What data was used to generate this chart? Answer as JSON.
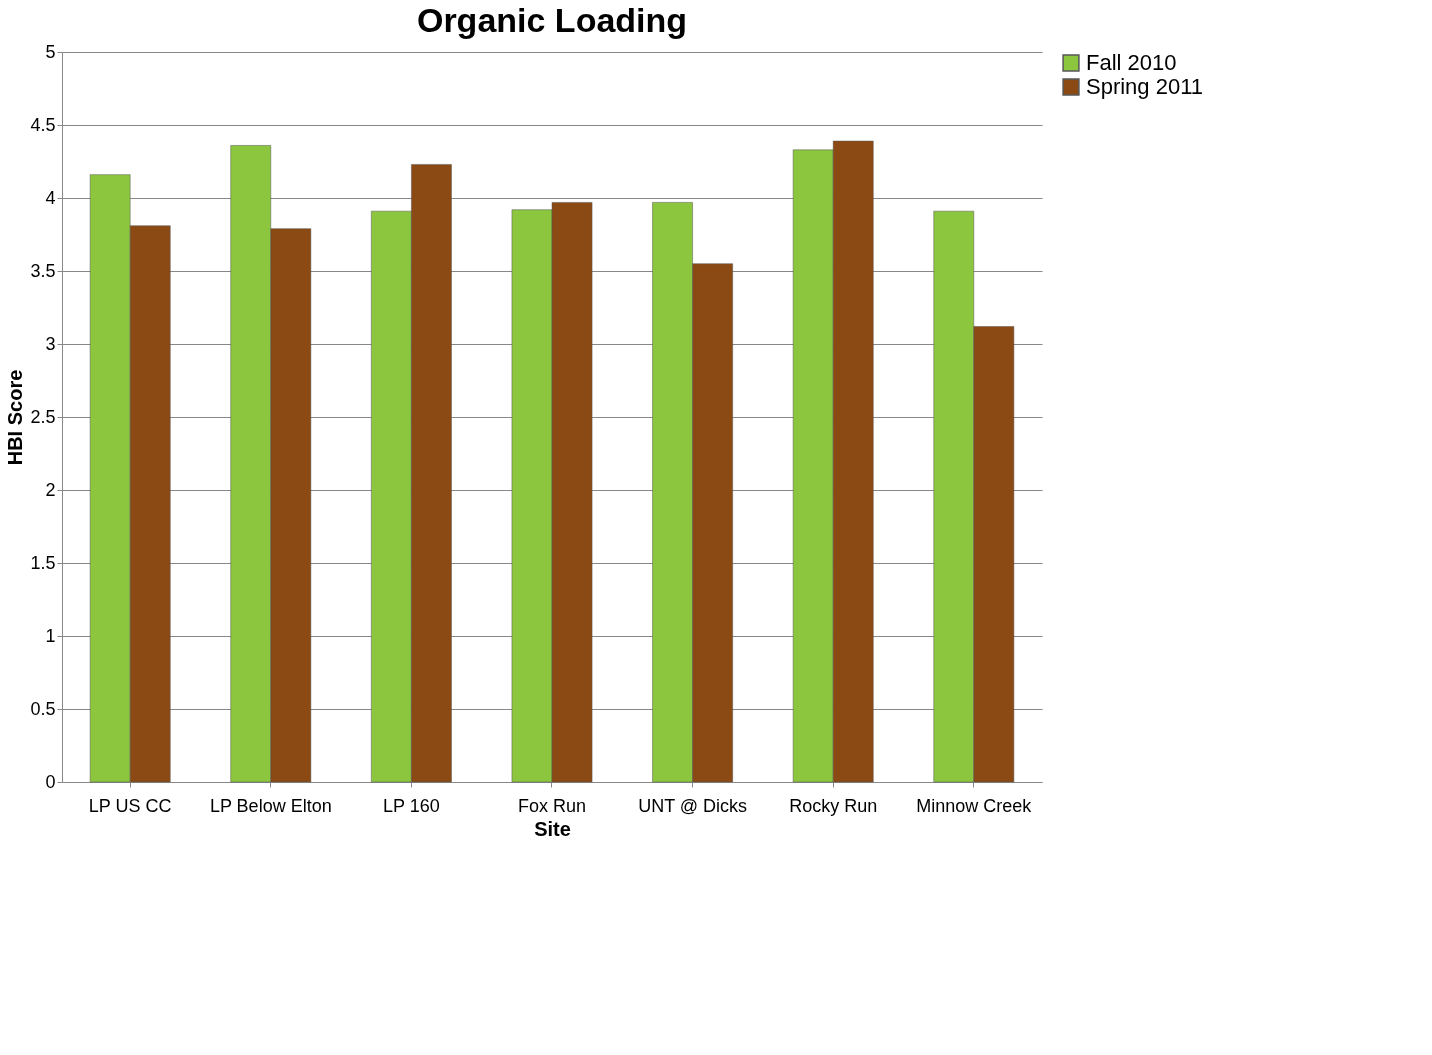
{
  "chart_data": {
    "type": "bar",
    "title": "Organic Loading",
    "xlabel": "Site",
    "ylabel": "HBI Score",
    "categories": [
      "LP US CC",
      "LP Below Elton",
      "LP 160",
      "Fox Run",
      "UNT @ Dicks",
      "Rocky Run",
      "Minnow Creek"
    ],
    "series": [
      {
        "name": "Fall 2010",
        "color": "#8cc63e",
        "values": [
          4.16,
          4.36,
          3.91,
          3.92,
          3.97,
          4.33,
          3.91
        ]
      },
      {
        "name": "Spring 2011",
        "color": "#8b4a14",
        "values": [
          3.81,
          3.79,
          4.23,
          3.97,
          3.55,
          4.39,
          3.12
        ]
      }
    ],
    "ylim": [
      0,
      5
    ],
    "yticks": [
      0,
      0.5,
      1,
      1.5,
      2,
      2.5,
      3,
      3.5,
      4,
      4.5,
      5
    ],
    "grid": "y",
    "legend": "right"
  }
}
